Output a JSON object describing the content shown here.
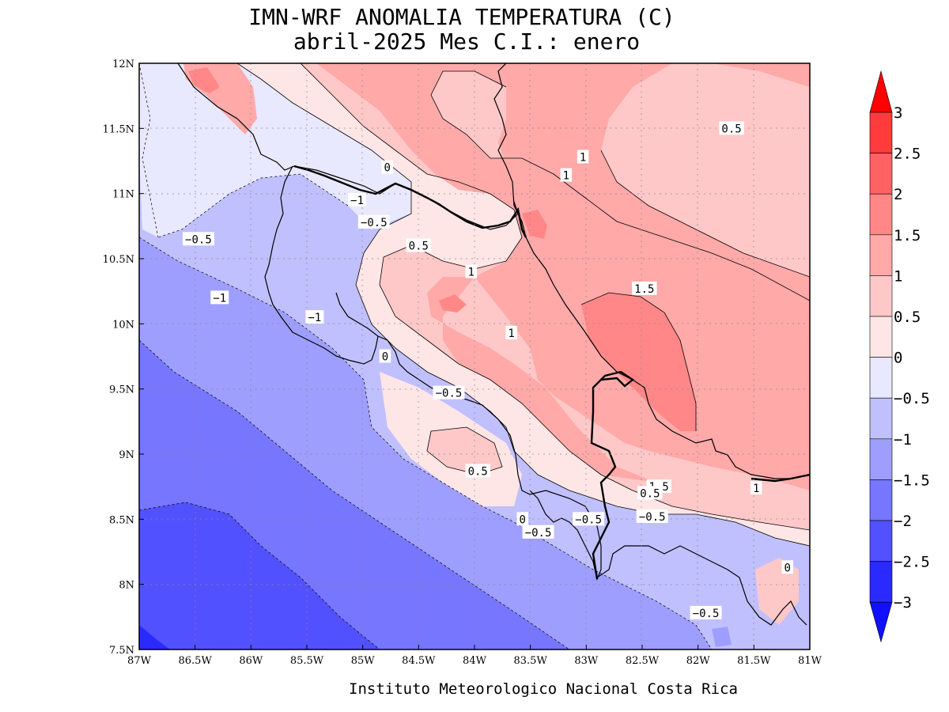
{
  "title_line1": "IMN-WRF  ANOMALIA TEMPERATURA (C)",
  "title_line2": "abril-2025 Mes C.I.: enero",
  "footer": "Instituto Meteorologico Nacional Costa Rica",
  "map": {
    "lon_range": [
      -87,
      -81
    ],
    "lat_range": [
      7.5,
      12
    ],
    "x_ticks": [
      "87W",
      "86.5W",
      "86W",
      "85.5W",
      "85W",
      "84.5W",
      "84W",
      "83.5W",
      "83W",
      "82.5W",
      "82W",
      "81.5W",
      "81W"
    ],
    "y_ticks": [
      "7.5N",
      "8N",
      "8.5N",
      "9N",
      "9.5N",
      "10N",
      "10.5N",
      "11N",
      "11.5N",
      "12N"
    ],
    "grid": "dotted",
    "units": "C",
    "field": "temperature anomaly",
    "contour_labels": [
      {
        "text": "0.5",
        "lon": -81.7,
        "lat": 11.5
      },
      {
        "text": "1",
        "lon": -83.03,
        "lat": 11.28
      },
      {
        "text": "1",
        "lon": -83.18,
        "lat": 11.14
      },
      {
        "text": "0",
        "lon": -84.78,
        "lat": 11.2
      },
      {
        "text": "−1",
        "lon": -85.05,
        "lat": 10.95
      },
      {
        "text": "−0.5",
        "lon": -84.9,
        "lat": 10.78
      },
      {
        "text": "−0.5",
        "lon": -86.47,
        "lat": 10.65
      },
      {
        "text": "0.5",
        "lon": -84.5,
        "lat": 10.6
      },
      {
        "text": "1",
        "lon": -84.03,
        "lat": 10.4
      },
      {
        "text": "1.5",
        "lon": -82.48,
        "lat": 10.27
      },
      {
        "text": "−1",
        "lon": -86.28,
        "lat": 10.2
      },
      {
        "text": "−1",
        "lon": -85.43,
        "lat": 10.05
      },
      {
        "text": "1",
        "lon": -83.67,
        "lat": 9.93
      },
      {
        "text": "0",
        "lon": -84.8,
        "lat": 9.75
      },
      {
        "text": "−0.5",
        "lon": -84.23,
        "lat": 9.47
      },
      {
        "text": "0.5",
        "lon": -83.97,
        "lat": 8.87
      },
      {
        "text": "1.5",
        "lon": -82.35,
        "lat": 8.75
      },
      {
        "text": "0.5",
        "lon": -82.43,
        "lat": 8.7
      },
      {
        "text": "1",
        "lon": -81.48,
        "lat": 8.74
      },
      {
        "text": "−0.5",
        "lon": -82.98,
        "lat": 8.5
      },
      {
        "text": "−0.5",
        "lon": -82.41,
        "lat": 8.52
      },
      {
        "text": "0",
        "lon": -83.57,
        "lat": 8.5
      },
      {
        "text": "−0.5",
        "lon": -83.43,
        "lat": 8.4
      },
      {
        "text": "0",
        "lon": -81.2,
        "lat": 8.13
      },
      {
        "text": "−0.5",
        "lon": -81.93,
        "lat": 7.78
      }
    ]
  },
  "colorbar": {
    "levels": [
      "3",
      "2.5",
      "2",
      "1.5",
      "1",
      "0.5",
      "0",
      "−0.5",
      "−1",
      "−1.5",
      "−2",
      "−2.5",
      "−3"
    ],
    "colors": [
      "#ff0000",
      "#ff3b3b",
      "#ff6262",
      "#ff8787",
      "#ffa9a9",
      "#ffc8c8",
      "#ffe6e6",
      "#e8e8ff",
      "#c0c0ff",
      "#9e9eff",
      "#7676ff",
      "#5151ff",
      "#2a2aff",
      "#1010ff"
    ]
  }
}
